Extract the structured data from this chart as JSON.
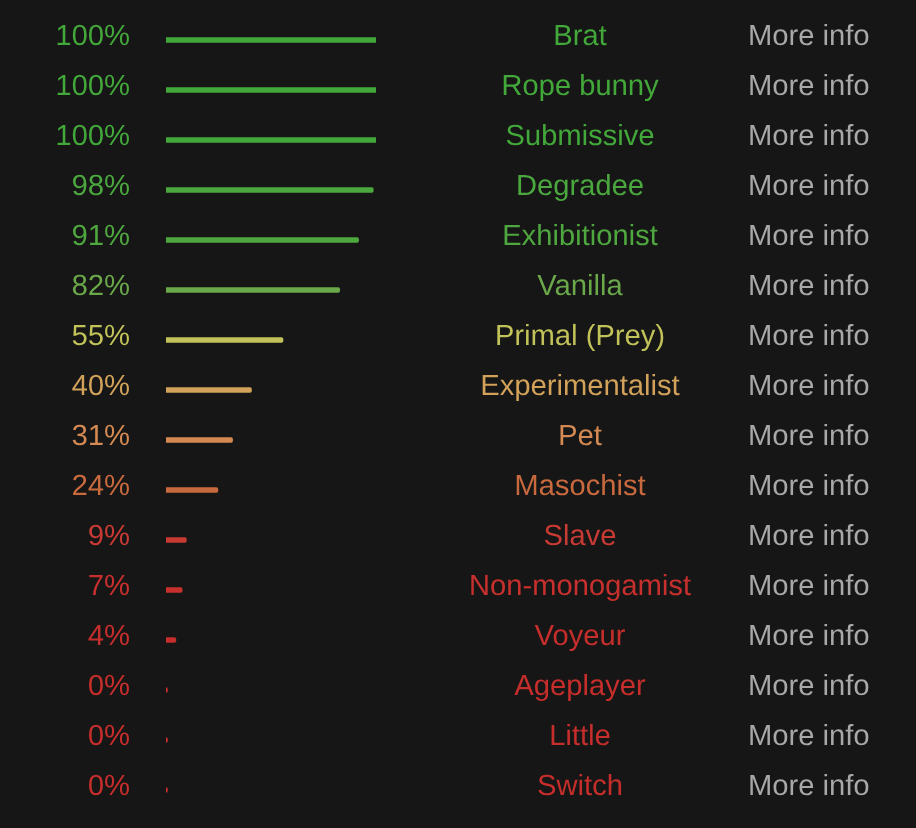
{
  "chart_data": {
    "type": "bar",
    "orientation": "horizontal",
    "categories": [
      "Brat",
      "Rope bunny",
      "Submissive",
      "Degradee",
      "Exhibitionist",
      "Vanilla",
      "Primal (Prey)",
      "Experimentalist",
      "Pet",
      "Masochist",
      "Slave",
      "Non-monogamist",
      "Voyeur",
      "Ageplayer",
      "Little",
      "Switch"
    ],
    "values": [
      100,
      100,
      100,
      98,
      91,
      82,
      55,
      40,
      31,
      24,
      9,
      7,
      4,
      0,
      0,
      0
    ],
    "value_labels": [
      "100%",
      "100%",
      "100%",
      "98%",
      "91%",
      "82%",
      "55%",
      "40%",
      "31%",
      "24%",
      "9%",
      "7%",
      "4%",
      "0%",
      "0%",
      "0%"
    ],
    "colors": [
      "#43a83a",
      "#43a83a",
      "#43a83a",
      "#4aa83e",
      "#4fa83f",
      "#6aa84a",
      "#c2c25a",
      "#d2a25a",
      "#d48a52",
      "#c96a3e",
      "#c83a34",
      "#c8302e",
      "#c62e2c",
      "#c62e2c",
      "#c62e2c",
      "#c62e2c"
    ],
    "annotations": [
      "More info",
      "More info",
      "More info",
      "More info",
      "More info",
      "More info",
      "More info",
      "More info",
      "More info",
      "More info",
      "More info",
      "More info",
      "More info",
      "More info",
      "More info",
      "More info"
    ]
  }
}
